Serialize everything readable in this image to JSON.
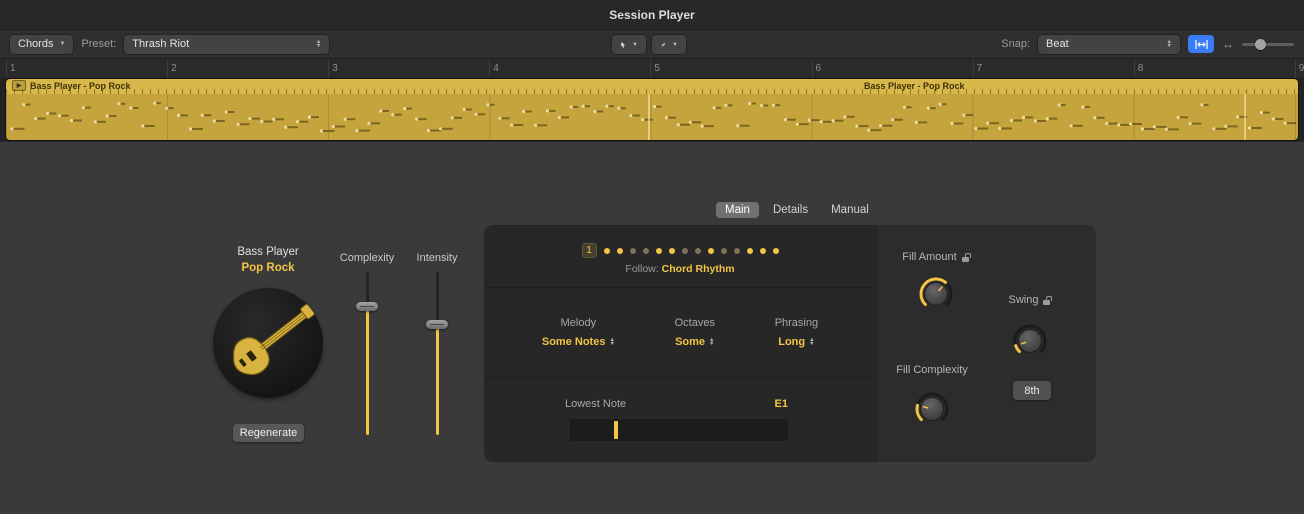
{
  "window": {
    "title": "Session Player"
  },
  "toolbar": {
    "chords": "Chords",
    "preset_label": "Preset:",
    "preset_value": "Thrash Riot",
    "snap_label": "Snap:",
    "snap_value": "Beat"
  },
  "ruler": {
    "numbers": [
      "1",
      "2",
      "3",
      "4",
      "5",
      "6",
      "7",
      "8",
      "9"
    ]
  },
  "region": {
    "track_name": "Bass Player - Pop Rock",
    "center_name": "Bass Player - Pop Rock"
  },
  "tabs": [
    {
      "label": "Main",
      "active": true
    },
    {
      "label": "Details",
      "active": false
    },
    {
      "label": "Manual",
      "active": false
    }
  ],
  "player": {
    "name": "Bass Player",
    "style": "Pop Rock",
    "regenerate": "Regenerate"
  },
  "sliders": [
    {
      "label": "Complexity",
      "value_pct": 79
    },
    {
      "label": "Intensity",
      "value_pct": 68
    }
  ],
  "pattern": {
    "badge": "1",
    "dots": [
      "on",
      "on",
      "dim",
      "dim",
      "on",
      "on",
      "dim",
      "dim",
      "on",
      "dim",
      "dim",
      "on",
      "on",
      "on"
    ],
    "follow_label": "Follow:",
    "follow_value": "Chord Rhythm"
  },
  "selects": [
    {
      "label": "Melody",
      "value": "Some Notes"
    },
    {
      "label": "Octaves",
      "value": "Some"
    },
    {
      "label": "Phrasing",
      "value": "Long"
    }
  ],
  "lowest_note": {
    "label": "Lowest Note",
    "value": "E1",
    "slider_pct": 21
  },
  "knobs": [
    {
      "label": "Fill Amount",
      "locked": true,
      "value_pct": 65
    },
    {
      "label": "Swing",
      "locked": true,
      "value_pct": 10
    },
    {
      "label": "Fill Complexity",
      "locked": false,
      "value_pct": 22
    }
  ],
  "eighth_button": "8th",
  "colors": {
    "accent": "#f2c544",
    "region_header": "#d8b74b",
    "region_body": "#c6a43d",
    "selection_blue": "#3a7cf8"
  }
}
